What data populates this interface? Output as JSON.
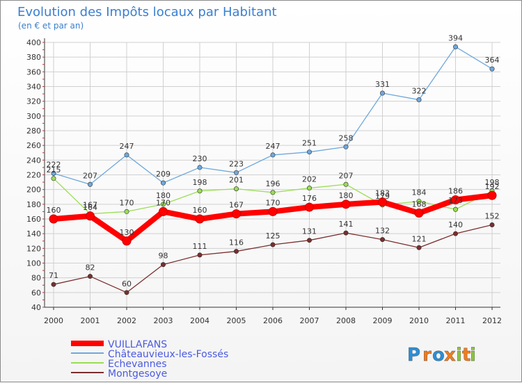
{
  "chart_data": {
    "type": "line",
    "title": "Evolution des Impôts locaux par Habitant",
    "subtitle": "(en € et par an)",
    "xlabel": "",
    "ylabel": "",
    "x": [
      "2000",
      "2001",
      "2002",
      "2003",
      "2004",
      "2005",
      "2006",
      "2007",
      "2008",
      "2009",
      "2010",
      "2011",
      "2012"
    ],
    "ylim": [
      40,
      400
    ],
    "yticks": [
      40,
      60,
      80,
      100,
      120,
      140,
      160,
      180,
      200,
      220,
      240,
      260,
      280,
      300,
      320,
      340,
      360,
      380,
      400
    ],
    "grid": true,
    "legend_position": "bottom-left",
    "series": [
      {
        "name": "VUILLAFANS",
        "color": "#ff0000",
        "values": [
          160,
          164,
          130,
          170,
          160,
          167,
          170,
          176,
          180,
          183,
          168,
          186,
          192
        ]
      },
      {
        "name": "Châteauvieux-les-Fossés",
        "color": "#6fa8dc",
        "values": [
          222,
          207,
          247,
          209,
          230,
          223,
          247,
          251,
          258,
          331,
          322,
          394,
          364
        ]
      },
      {
        "name": "Echevannes",
        "color": "#99dd55",
        "values": [
          215,
          167,
          170,
          180,
          198,
          201,
          196,
          202,
          207,
          179,
          184,
          173,
          198
        ]
      },
      {
        "name": "Montgesoye",
        "color": "#7a2e2e",
        "values": [
          71,
          82,
          60,
          98,
          111,
          116,
          125,
          131,
          141,
          132,
          121,
          140,
          152
        ]
      }
    ]
  },
  "brand": {
    "letters": [
      "P",
      "r",
      "o",
      "x",
      "i",
      "t",
      "i"
    ],
    "colors": [
      "#2a8fd8",
      "#f07c1c",
      "#2a8fd8",
      "#f07c1c",
      "#8cc63f",
      "#f07c1c",
      "#8cc63f"
    ]
  },
  "colors": {
    "title": "#3a7fd0",
    "legend_text": "#4a5adf",
    "axis_text": "#333333",
    "grid": "#d0d0d0"
  }
}
